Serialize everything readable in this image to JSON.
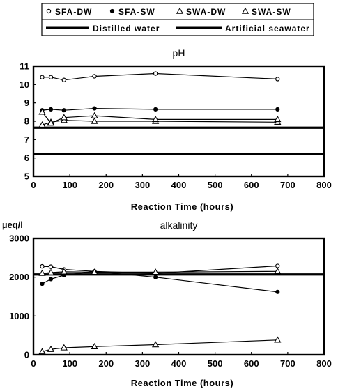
{
  "legend": {
    "markers": [
      {
        "label": "SFA-DW",
        "marker": "circle-open"
      },
      {
        "label": "SFA-SW",
        "marker": "circle-filled"
      },
      {
        "label": "SWA-DW",
        "marker": "triangle-open"
      },
      {
        "label": "SWA-SW",
        "marker": "triangle-open"
      }
    ],
    "lines": [
      {
        "label": "Distilled water"
      },
      {
        "label": "Artificial seawater"
      }
    ]
  },
  "chart_data": [
    {
      "type": "line",
      "title": "pH",
      "xlabel": "Reaction Time (hours)",
      "ylabel": "",
      "xlim": [
        0,
        800
      ],
      "ylim": [
        5,
        11
      ],
      "xticks": [
        0,
        100,
        200,
        300,
        400,
        500,
        600,
        700,
        800
      ],
      "yticks": [
        5,
        6,
        7,
        8,
        9,
        10,
        11
      ],
      "grid": false,
      "series": [
        {
          "name": "SFA-DW",
          "marker": "circle-open",
          "x": [
            24,
            48,
            84,
            168,
            336,
            672
          ],
          "y": [
            10.4,
            10.4,
            10.25,
            10.45,
            10.6,
            10.3
          ]
        },
        {
          "name": "SFA-SW",
          "marker": "circle-filled",
          "x": [
            24,
            48,
            84,
            168,
            336,
            672
          ],
          "y": [
            8.6,
            8.65,
            8.6,
            8.7,
            8.65,
            8.65
          ]
        },
        {
          "name": "SWA-DW",
          "marker": "triangle-open",
          "x": [
            24,
            48,
            84,
            168,
            336,
            672
          ],
          "y": [
            7.8,
            7.95,
            8.05,
            8.0,
            8.0,
            7.95
          ]
        },
        {
          "name": "SWA-SW",
          "marker": "triangle-open",
          "x": [
            24,
            48,
            84,
            168,
            336,
            672
          ],
          "y": [
            8.5,
            7.9,
            8.2,
            8.3,
            8.1,
            8.1
          ]
        }
      ],
      "reference_lines": [
        {
          "name": "Distilled water",
          "y": 6.2
        },
        {
          "name": "Artificial seawater",
          "y": 7.65
        }
      ]
    },
    {
      "type": "line",
      "title": "alkalinity",
      "xlabel": "Reaction Time (hours)",
      "ylabel": "µeq/l",
      "xlim": [
        0,
        800
      ],
      "ylim": [
        0,
        3000
      ],
      "xticks": [
        0,
        100,
        200,
        300,
        400,
        500,
        600,
        700,
        800
      ],
      "yticks": [
        0,
        1000,
        2000,
        3000
      ],
      "grid": false,
      "series": [
        {
          "name": "SFA-DW",
          "marker": "circle-open",
          "x": [
            24,
            48,
            84,
            168,
            336,
            672
          ],
          "y": [
            2280,
            2270,
            2200,
            2150,
            2100,
            2290
          ]
        },
        {
          "name": "SFA-SW",
          "marker": "circle-filled",
          "x": [
            24,
            48,
            84,
            168,
            336,
            672
          ],
          "y": [
            1830,
            1950,
            2050,
            2150,
            2000,
            1620
          ]
        },
        {
          "name": "SWA-DW",
          "marker": "triangle-open",
          "x": [
            24,
            48,
            84,
            168,
            336,
            672
          ],
          "y": [
            80,
            140,
            180,
            210,
            260,
            380
          ]
        },
        {
          "name": "SWA-SW",
          "marker": "triangle-open",
          "x": [
            24,
            48,
            84,
            168,
            336,
            672
          ],
          "y": [
            2100,
            2120,
            2140,
            2130,
            2130,
            2150
          ]
        }
      ],
      "reference_lines": [
        {
          "name": "Artificial seawater",
          "y": 2070
        }
      ]
    }
  ]
}
